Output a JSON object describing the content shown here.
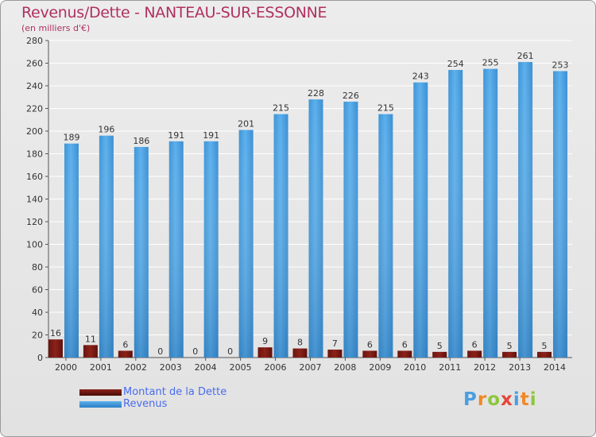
{
  "header": {
    "title": "Revenus/Dette - NANTEAU-SUR-ESSONNE",
    "subtitle": "(en milliers d'€)"
  },
  "colors": {
    "revenus": "#4fa5e3",
    "revenus_dark": "#2b7fc4",
    "dette": "#7a1a14",
    "dette_dark": "#4a0c08",
    "title": "#b03060",
    "legend_text": "#4a6cf0"
  },
  "chart_data": {
    "type": "bar",
    "title": "Revenus/Dette - NANTEAU-SUR-ESSONNE",
    "ylabel": "(en milliers d'€)",
    "xlabel": "",
    "categories": [
      "2000",
      "2001",
      "2002",
      "2003",
      "2004",
      "2005",
      "2006",
      "2007",
      "2008",
      "2009",
      "2010",
      "2011",
      "2012",
      "2013",
      "2014"
    ],
    "series": [
      {
        "name": "Montant de la Dette",
        "values": [
          16,
          11,
          6,
          0,
          0,
          0,
          9,
          8,
          7,
          6,
          6,
          5,
          6,
          5,
          5
        ]
      },
      {
        "name": "Revenus",
        "values": [
          189,
          196,
          186,
          191,
          191,
          201,
          215,
          228,
          226,
          215,
          243,
          254,
          255,
          261,
          253
        ]
      }
    ],
    "ylim": [
      0,
      280
    ],
    "yticks": [
      0,
      20,
      40,
      60,
      80,
      100,
      120,
      140,
      160,
      180,
      200,
      220,
      240,
      260,
      280
    ],
    "grid": true,
    "legend": "bottom-left"
  },
  "legend": {
    "items": [
      {
        "label": "Montant de la Dette"
      },
      {
        "label": "Revenus"
      }
    ]
  },
  "brand": {
    "letters": [
      "P",
      "r",
      "o",
      "x",
      "i",
      "t",
      "i"
    ],
    "letter_colors": [
      "#4a9ee0",
      "#f08a24",
      "#8dc63f",
      "#e8443a",
      "#4a9ee0",
      "#f08a24",
      "#8dc63f"
    ]
  }
}
